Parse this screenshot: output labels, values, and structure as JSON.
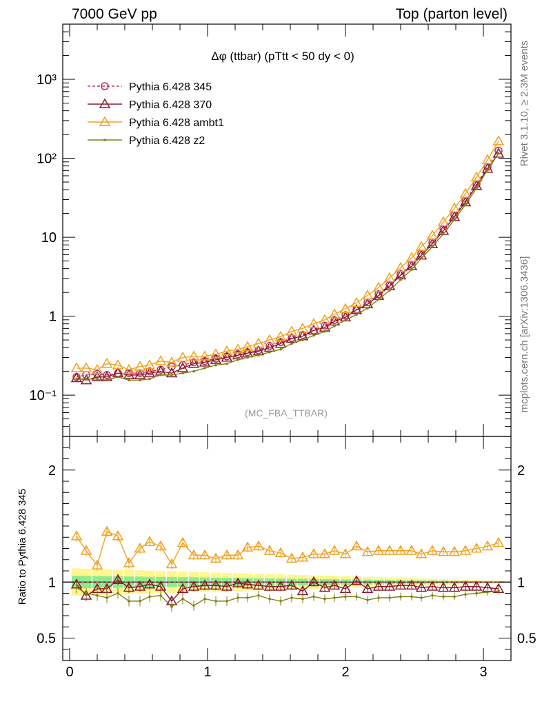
{
  "header": {
    "left": "7000 GeV pp",
    "right": "Top (parton level)"
  },
  "side": {
    "rivet": "Rivet 3.1.10, ≥ 2.3M events",
    "mcplots": "mcplots.cern.ch [arXiv:1306.3436]"
  },
  "chart_data": {
    "type": "line",
    "title": "Δφ (ttbar) (pTtt < 50 dy < 0)",
    "watermark": "(MC_FBA_TTBAR)",
    "ylabel_ratio": "Ratio to Pythia 6.428 345",
    "xlim": [
      -0.05,
      3.2
    ],
    "ylim_main": [
      0.03,
      5000
    ],
    "ylim_ratio": [
      0.3,
      2.3
    ],
    "y_scale_main": "log",
    "legend_position": "top-left",
    "x_ticks": [
      "0",
      "1",
      "2",
      "3"
    ],
    "y_ticks_main": [
      "10⁻¹",
      "1",
      "10",
      "10²",
      "10³"
    ],
    "y_ticks_ratio": [
      "0.5",
      "1",
      "2"
    ],
    "x": [
      0.05,
      0.12,
      0.2,
      0.27,
      0.35,
      0.43,
      0.51,
      0.58,
      0.66,
      0.74,
      0.82,
      0.9,
      0.98,
      1.06,
      1.14,
      1.22,
      1.29,
      1.37,
      1.45,
      1.53,
      1.61,
      1.69,
      1.77,
      1.85,
      1.92,
      2.0,
      2.08,
      2.16,
      2.24,
      2.32,
      2.4,
      2.48,
      2.55,
      2.63,
      2.71,
      2.79,
      2.87,
      2.95,
      3.03,
      3.11
    ],
    "series": [
      {
        "name": "Pythia 6.428 345",
        "color": "#c0305a",
        "marker": "circle",
        "dashed": true,
        "values": [
          0.17,
          0.18,
          0.185,
          0.18,
          0.19,
          0.19,
          0.19,
          0.2,
          0.21,
          0.23,
          0.24,
          0.26,
          0.27,
          0.29,
          0.31,
          0.33,
          0.35,
          0.37,
          0.42,
          0.47,
          0.53,
          0.58,
          0.66,
          0.76,
          0.89,
          1.03,
          1.21,
          1.5,
          1.9,
          2.5,
          3.4,
          4.5,
          6.2,
          8.6,
          12.7,
          19,
          29,
          47,
          78,
          125
        ],
        "ratio": [
          1.0,
          1.0,
          1.0,
          1.0,
          1.0,
          1.0,
          1.0,
          1.0,
          1.0,
          1.0,
          1.0,
          1.0,
          1.0,
          1.0,
          1.0,
          1.0,
          1.0,
          1.0,
          1.0,
          1.0,
          1.0,
          1.0,
          1.0,
          1.0,
          1.0,
          1.0,
          1.0,
          1.0,
          1.0,
          1.0,
          1.0,
          1.0,
          1.0,
          1.0,
          1.0,
          1.0,
          1.0,
          1.0,
          1.0,
          1.0
        ]
      },
      {
        "name": "Pythia 6.428 370",
        "color": "#8b1a2b",
        "marker": "triangle",
        "dashed": false,
        "values": [
          0.165,
          0.155,
          0.17,
          0.17,
          0.19,
          0.18,
          0.18,
          0.19,
          0.2,
          0.19,
          0.22,
          0.25,
          0.26,
          0.28,
          0.3,
          0.32,
          0.34,
          0.36,
          0.4,
          0.45,
          0.52,
          0.56,
          0.66,
          0.72,
          0.86,
          0.97,
          1.2,
          1.42,
          1.82,
          2.4,
          3.3,
          4.3,
          5.9,
          8.2,
          12.1,
          18.1,
          27.8,
          44.8,
          74,
          115
        ],
        "ratio": [
          0.98,
          0.88,
          0.94,
          0.94,
          1.02,
          0.95,
          0.96,
          0.98,
          0.96,
          0.83,
          0.94,
          0.96,
          0.97,
          0.97,
          0.96,
          0.99,
          0.98,
          0.97,
          0.96,
          0.96,
          0.97,
          0.92,
          1.0,
          0.95,
          0.97,
          0.94,
          1.01,
          0.94,
          0.96,
          0.96,
          0.97,
          0.97,
          0.95,
          0.96,
          0.95,
          0.95,
          0.96,
          0.96,
          0.95,
          0.94
        ]
      },
      {
        "name": "Pythia 6.428 ambt1",
        "color": "#f0a020",
        "marker": "triangle",
        "dashed": false,
        "values": [
          0.22,
          0.22,
          0.21,
          0.25,
          0.24,
          0.21,
          0.23,
          0.24,
          0.27,
          0.26,
          0.3,
          0.31,
          0.31,
          0.33,
          0.36,
          0.38,
          0.41,
          0.45,
          0.5,
          0.55,
          0.64,
          0.7,
          0.8,
          0.9,
          1.06,
          1.24,
          1.48,
          1.83,
          2.3,
          3.05,
          4.1,
          5.5,
          7.6,
          10.5,
          15.6,
          23.3,
          35.6,
          57.5,
          95.5,
          165
        ],
        "ratio": [
          1.41,
          1.28,
          1.15,
          1.45,
          1.41,
          1.17,
          1.3,
          1.36,
          1.32,
          1.16,
          1.35,
          1.24,
          1.24,
          1.21,
          1.24,
          1.24,
          1.31,
          1.32,
          1.28,
          1.26,
          1.21,
          1.22,
          1.25,
          1.25,
          1.28,
          1.25,
          1.32,
          1.27,
          1.28,
          1.28,
          1.28,
          1.28,
          1.25,
          1.28,
          1.27,
          1.27,
          1.28,
          1.3,
          1.32,
          1.35
        ]
      },
      {
        "name": "Pythia 6.428 z2",
        "color": "#808010",
        "marker": "dot",
        "dashed": false,
        "values": [
          0.16,
          0.16,
          0.16,
          0.155,
          0.17,
          0.155,
          0.155,
          0.16,
          0.18,
          0.18,
          0.19,
          0.2,
          0.22,
          0.24,
          0.25,
          0.28,
          0.3,
          0.32,
          0.35,
          0.38,
          0.45,
          0.5,
          0.57,
          0.64,
          0.75,
          0.89,
          1.05,
          1.26,
          1.63,
          2.12,
          2.9,
          3.9,
          5.4,
          7.6,
          11,
          16.8,
          25.8,
          42,
          71,
          115
        ],
        "ratio": [
          0.95,
          0.9,
          0.88,
          0.86,
          0.9,
          0.83,
          0.83,
          0.87,
          0.88,
          0.78,
          0.85,
          0.79,
          0.85,
          0.83,
          0.83,
          0.86,
          0.86,
          0.88,
          0.85,
          0.83,
          0.86,
          0.85,
          0.87,
          0.85,
          0.86,
          0.87,
          0.87,
          0.84,
          0.86,
          0.86,
          0.87,
          0.87,
          0.86,
          0.88,
          0.87,
          0.87,
          0.89,
          0.9,
          0.91,
          0.92
        ]
      }
    ]
  }
}
